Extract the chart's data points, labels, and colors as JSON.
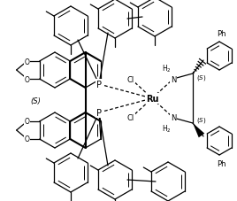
{
  "bg_color": "#ffffff",
  "line_color": "#000000",
  "lw": 0.9,
  "lw_bold": 1.5,
  "fig_width": 2.68,
  "fig_height": 2.28,
  "dpi": 100,
  "xlim": [
    0,
    268
  ],
  "ylim": [
    0,
    228
  ]
}
